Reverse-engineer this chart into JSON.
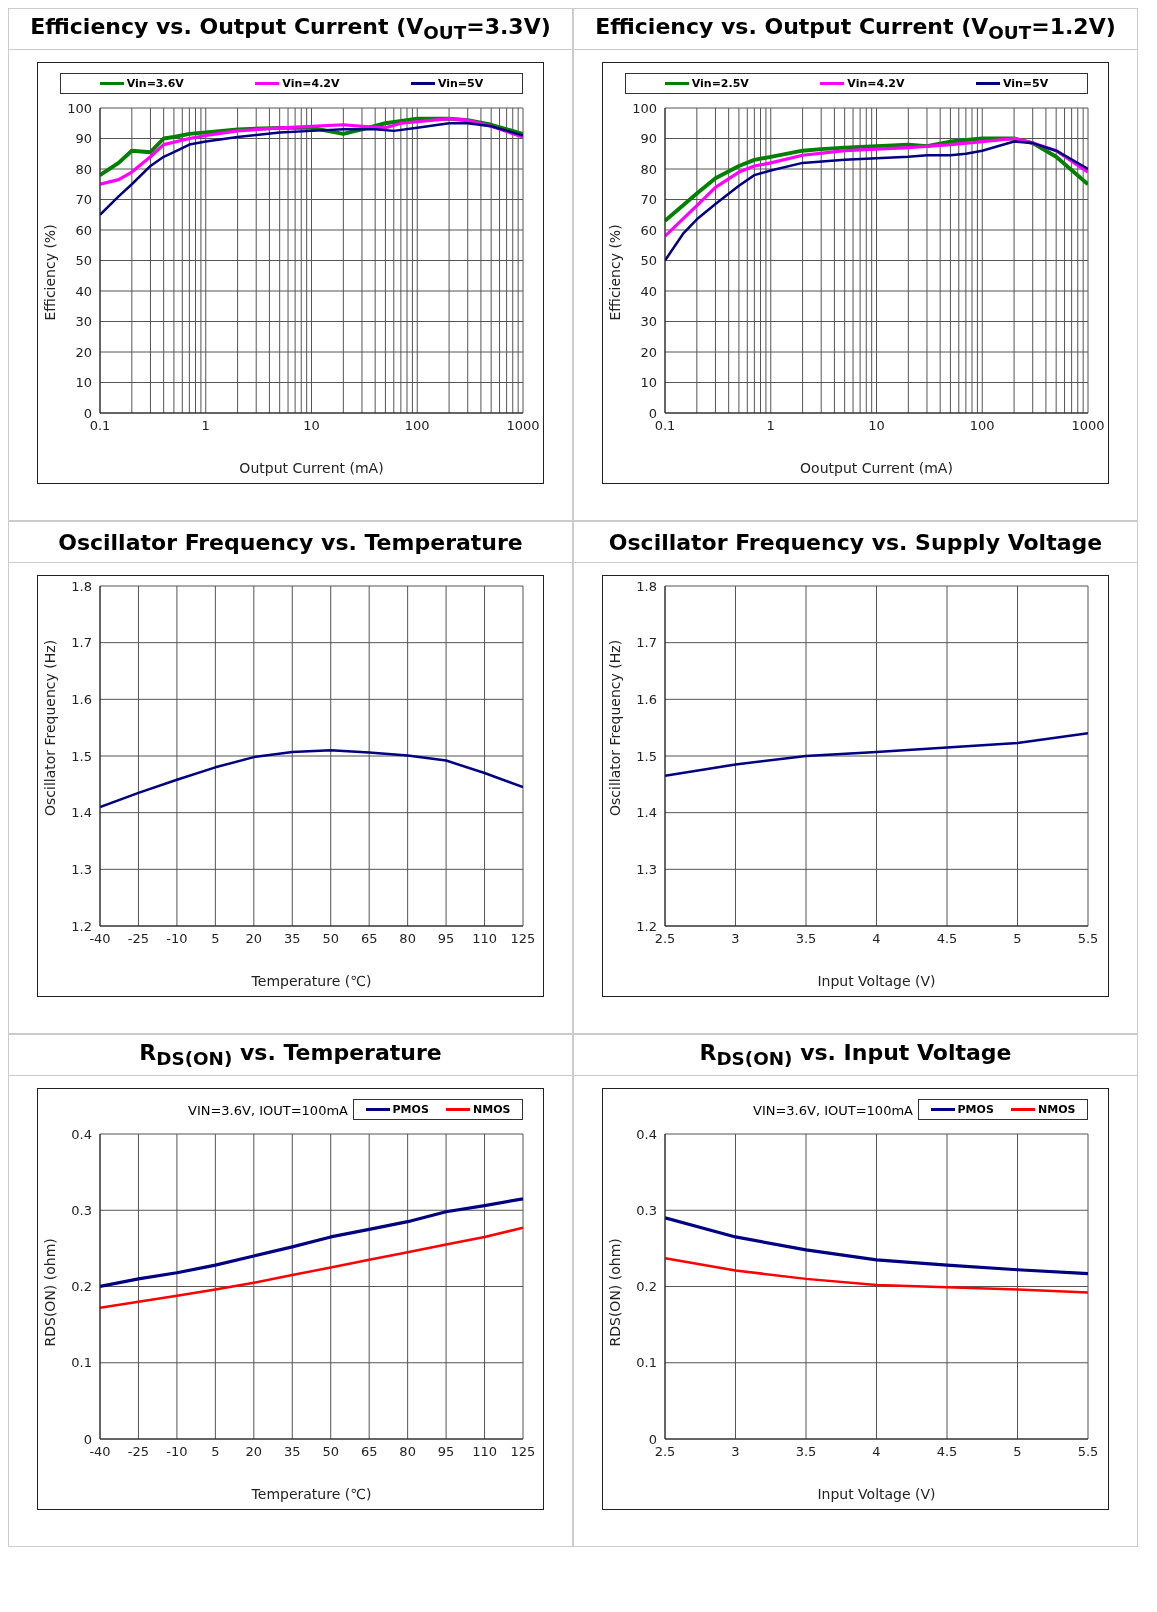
{
  "chart_data": [
    {
      "type": "line",
      "title": "Efficiency vs. Output Current (V$_{OUT}$=3.3V)",
      "xlabel": "Output Current (mA)",
      "ylabel": "Efficiency (%)",
      "log": "x",
      "grid": true,
      "legend": "top",
      "marker": "none",
      "line_style": "solid",
      "xlim": [
        0.1,
        1000
      ],
      "xticks": [
        0.1,
        {
          "value": 0.2,
          "label": null
        },
        {
          "value": 0.3,
          "label": null
        },
        {
          "value": 0.4,
          "label": null
        },
        {
          "value": 0.5,
          "label": null
        },
        {
          "value": 0.6,
          "label": null
        },
        {
          "value": 0.7,
          "label": null
        },
        {
          "value": 0.8,
          "label": null
        },
        {
          "value": 0.9,
          "label": null
        },
        1,
        {
          "value": 2,
          "label": null
        },
        {
          "value": 3,
          "label": null
        },
        {
          "value": 4,
          "label": null
        },
        {
          "value": 5,
          "label": null
        },
        {
          "value": 6,
          "label": null
        },
        {
          "value": 7,
          "label": null
        },
        {
          "value": 8,
          "label": null
        },
        {
          "value": 9,
          "label": null
        },
        10,
        {
          "value": 20,
          "label": null
        },
        {
          "value": 30,
          "label": null
        },
        {
          "value": 40,
          "label": null
        },
        {
          "value": 50,
          "label": null
        },
        {
          "value": 60,
          "label": null
        },
        {
          "value": 70,
          "label": null
        },
        {
          "value": 80,
          "label": null
        },
        {
          "value": 90,
          "label": null
        },
        100,
        {
          "value": 200,
          "label": null
        },
        {
          "value": 300,
          "label": null
        },
        {
          "value": 400,
          "label": null
        },
        {
          "value": 500,
          "label": null
        },
        {
          "value": 600,
          "label": null
        },
        {
          "value": 700,
          "label": null
        },
        {
          "value": 800,
          "label": null
        },
        {
          "value": 900,
          "label": null
        },
        1000
      ],
      "ylim": [
        0,
        100
      ],
      "yticks": [
        0,
        10,
        20,
        30,
        40,
        50,
        60,
        70,
        80,
        90,
        100
      ],
      "series": [
        {
          "name": "Vin=3.6V",
          "color": "#008000",
          "x": [
            0.1,
            0.15,
            0.2,
            0.3,
            0.4,
            0.5,
            0.7,
            1,
            2,
            5,
            10,
            20,
            30,
            50,
            100,
            200,
            300,
            500,
            1000
          ],
          "values": [
            78,
            82,
            86,
            85.5,
            90,
            90.5,
            91.5,
            92,
            93,
            93.5,
            93.5,
            91.5,
            93,
            95,
            96.5,
            96.5,
            96,
            94.5,
            91.5
          ]
        },
        {
          "name": "Vin=4.2V",
          "color": "#ff00ff",
          "x": [
            0.1,
            0.15,
            0.2,
            0.3,
            0.4,
            0.7,
            1,
            2,
            5,
            10,
            20,
            30,
            50,
            70,
            100,
            200,
            300,
            500,
            1000
          ],
          "values": [
            75,
            76.5,
            79,
            84,
            88,
            90,
            91,
            92.5,
            93.5,
            94,
            94.5,
            94,
            93.5,
            95,
            95.5,
            96.5,
            96,
            94,
            90.5
          ]
        },
        {
          "name": "Vin=5V",
          "color": "#000080",
          "x": [
            0.1,
            0.15,
            0.2,
            0.3,
            0.4,
            0.5,
            0.7,
            1,
            2,
            5,
            10,
            20,
            40,
            60,
            100,
            200,
            300,
            500,
            1000
          ],
          "values": [
            65,
            71,
            75,
            81,
            84,
            85.5,
            88,
            89,
            90.5,
            92,
            92.5,
            93,
            93,
            92.5,
            93.5,
            95,
            95,
            94,
            91
          ]
        }
      ]
    },
    {
      "type": "line",
      "title": "Efficiency vs. Output Current (V$_{OUT}$=1.2V)",
      "xlabel": "Ooutput Current (mA)",
      "ylabel": "Efficiency (%)",
      "log": "x",
      "grid": true,
      "legend": "top",
      "marker": "none",
      "line_style": "solid",
      "xlim": [
        0.1,
        1000
      ],
      "xticks": [
        0.1,
        {
          "value": 0.2,
          "label": null
        },
        {
          "value": 0.3,
          "label": null
        },
        {
          "value": 0.4,
          "label": null
        },
        {
          "value": 0.5,
          "label": null
        },
        {
          "value": 0.6,
          "label": null
        },
        {
          "value": 0.7,
          "label": null
        },
        {
          "value": 0.8,
          "label": null
        },
        {
          "value": 0.9,
          "label": null
        },
        1,
        {
          "value": 2,
          "label": null
        },
        {
          "value": 3,
          "label": null
        },
        {
          "value": 4,
          "label": null
        },
        {
          "value": 5,
          "label": null
        },
        {
          "value": 6,
          "label": null
        },
        {
          "value": 7,
          "label": null
        },
        {
          "value": 8,
          "label": null
        },
        {
          "value": 9,
          "label": null
        },
        10,
        {
          "value": 20,
          "label": null
        },
        {
          "value": 30,
          "label": null
        },
        {
          "value": 40,
          "label": null
        },
        {
          "value": 50,
          "label": null
        },
        {
          "value": 60,
          "label": null
        },
        {
          "value": 70,
          "label": null
        },
        {
          "value": 80,
          "label": null
        },
        {
          "value": 90,
          "label": null
        },
        100,
        {
          "value": 200,
          "label": null
        },
        {
          "value": 300,
          "label": null
        },
        {
          "value": 400,
          "label": null
        },
        {
          "value": 500,
          "label": null
        },
        {
          "value": 600,
          "label": null
        },
        {
          "value": 700,
          "label": null
        },
        {
          "value": 800,
          "label": null
        },
        {
          "value": 900,
          "label": null
        },
        1000
      ],
      "ylim": [
        0,
        100
      ],
      "yticks": [
        0,
        10,
        20,
        30,
        40,
        50,
        60,
        70,
        80,
        90,
        100
      ],
      "series": [
        {
          "name": "Vin=2.5V",
          "color": "#008000",
          "x": [
            0.1,
            0.2,
            0.3,
            0.5,
            0.7,
            1,
            2,
            3,
            5,
            10,
            20,
            30,
            50,
            100,
            200,
            300,
            500,
            1000
          ],
          "values": [
            63,
            72,
            77,
            81,
            83,
            84,
            86,
            86.5,
            87,
            87.5,
            88,
            87.5,
            89,
            90,
            90,
            88.5,
            84,
            75
          ]
        },
        {
          "name": "Vin=4.2V",
          "color": "#ff00ff",
          "x": [
            0.1,
            0.2,
            0.3,
            0.5,
            0.7,
            1,
            2,
            5,
            10,
            20,
            50,
            100,
            200,
            300,
            500,
            1000
          ],
          "values": [
            58,
            68,
            74,
            79,
            81,
            82,
            84.5,
            86,
            86.5,
            87,
            88,
            89,
            90,
            88.5,
            86,
            79
          ]
        },
        {
          "name": "Vin=5V",
          "color": "#000080",
          "x": [
            0.1,
            0.15,
            0.2,
            0.3,
            0.5,
            0.7,
            1,
            2,
            5,
            10,
            20,
            30,
            50,
            70,
            100,
            200,
            300,
            500,
            1000
          ],
          "values": [
            50,
            59,
            63.5,
            68.5,
            74.5,
            78,
            79.5,
            82,
            83,
            83.5,
            84,
            84.5,
            84.5,
            85,
            86,
            89,
            88.5,
            86,
            80
          ]
        }
      ]
    },
    {
      "type": "line",
      "title": "Oscillator Frequency vs. Temperature",
      "xlabel": "Temperature (℃)",
      "ylabel": "Oscillator Frequency (Hz)",
      "grid": true,
      "marker": "none",
      "line_style": "solid",
      "xlim": [
        -40,
        125
      ],
      "xticks": [
        -40,
        -25,
        -10,
        5,
        20,
        35,
        50,
        65,
        80,
        95,
        110,
        125
      ],
      "ylim": [
        1.2,
        1.8
      ],
      "yticks": [
        1.2,
        1.3,
        1.4,
        1.5,
        1.6,
        1.7,
        1.8
      ],
      "series": [
        {
          "color": "#000080",
          "x": [
            -40,
            -25,
            -10,
            5,
            20,
            35,
            50,
            65,
            80,
            95,
            110,
            125
          ],
          "values": [
            1.41,
            1.435,
            1.458,
            1.48,
            1.498,
            1.507,
            1.51,
            1.506,
            1.501,
            1.492,
            1.47,
            1.445
          ]
        }
      ]
    },
    {
      "type": "line",
      "title": "Oscillator Frequency vs. Supply Voltage",
      "xlabel": "Input Voltage (V)",
      "ylabel": "Oscillator Frequency (Hz)",
      "grid": true,
      "marker": "none",
      "line_style": "solid",
      "xlim": [
        2.5,
        5.5
      ],
      "xticks": [
        2.5,
        3,
        3.5,
        4,
        4.5,
        5,
        5.5
      ],
      "ylim": [
        1.2,
        1.8
      ],
      "yticks": [
        1.2,
        1.3,
        1.4,
        1.5,
        1.6,
        1.7,
        1.8
      ],
      "series": [
        {
          "color": "#000080",
          "x": [
            2.5,
            3,
            3.5,
            4,
            4.5,
            5,
            5.5
          ],
          "values": [
            1.465,
            1.485,
            1.5,
            1.507,
            1.515,
            1.523,
            1.54
          ]
        }
      ]
    },
    {
      "type": "line",
      "title": "R$_{DS(ON)}$ vs. Temperature",
      "xlabel": "Temperature (℃)",
      "ylabel": "RDS(ON) (ohm)",
      "annotations": [
        "VIN=3.6V, IOUT=100mA"
      ],
      "grid": true,
      "legend": "top right",
      "marker": "none",
      "line_style": "solid",
      "xlim": [
        -40,
        125
      ],
      "xticks": [
        -40,
        -25,
        -10,
        5,
        20,
        35,
        50,
        65,
        80,
        95,
        110,
        125
      ],
      "ylim": [
        0,
        0.4
      ],
      "yticks": [
        0,
        0.1,
        0.2,
        0.3,
        0.4
      ],
      "series": [
        {
          "name": "PMOS",
          "color": "#000080",
          "x": [
            -40,
            -25,
            -10,
            5,
            20,
            35,
            50,
            65,
            80,
            95,
            110,
            125
          ],
          "values": [
            0.2,
            0.21,
            0.218,
            0.228,
            0.24,
            0.252,
            0.265,
            0.275,
            0.285,
            0.298,
            0.306,
            0.315
          ]
        },
        {
          "name": "NMOS",
          "color": "#ff0000",
          "x": [
            -40,
            -25,
            -10,
            5,
            20,
            35,
            50,
            65,
            80,
            95,
            110,
            125
          ],
          "values": [
            0.172,
            0.18,
            0.188,
            0.196,
            0.205,
            0.215,
            0.225,
            0.235,
            0.245,
            0.255,
            0.265,
            0.277
          ]
        }
      ]
    },
    {
      "type": "line",
      "title": "R$_{DS(ON)}$ vs. Input Voltage",
      "xlabel": "Input Voltage (V)",
      "ylabel": "RDS(ON) (ohm)",
      "annotations": [
        "VIN=3.6V, IOUT=100mA"
      ],
      "grid": true,
      "legend": "top right",
      "marker": "none",
      "line_style": "solid",
      "xlim": [
        2.5,
        5.5
      ],
      "xticks": [
        2.5,
        3,
        3.5,
        4,
        4.5,
        5,
        5.5
      ],
      "ylim": [
        0,
        0.4
      ],
      "yticks": [
        0,
        0.1,
        0.2,
        0.3,
        0.4
      ],
      "series": [
        {
          "name": "PMOS",
          "color": "#000080",
          "x": [
            2.5,
            3,
            3.5,
            4,
            4.5,
            5,
            5.5
          ],
          "values": [
            0.29,
            0.265,
            0.248,
            0.235,
            0.228,
            0.222,
            0.217
          ]
        },
        {
          "name": "NMOS",
          "color": "#ff0000",
          "x": [
            2.5,
            3,
            3.5,
            4,
            4.5,
            5,
            5.5
          ],
          "values": [
            0.237,
            0.221,
            0.21,
            0.202,
            0.199,
            0.196,
            0.192
          ]
        }
      ]
    }
  ]
}
